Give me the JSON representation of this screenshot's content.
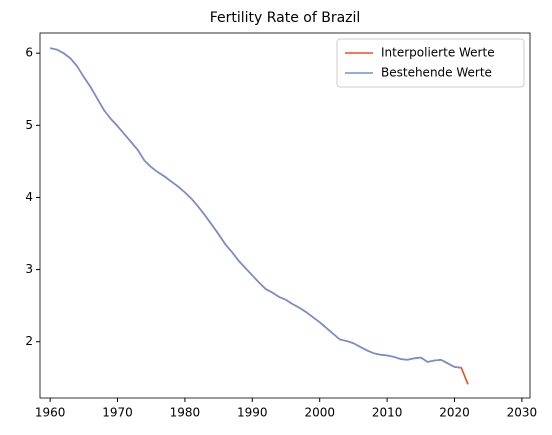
{
  "chart_data": {
    "type": "line",
    "title": "Fertility Rate of Brazil",
    "x": [
      1960,
      1961,
      1962,
      1963,
      1964,
      1965,
      1966,
      1967,
      1968,
      1969,
      1970,
      1971,
      1972,
      1973,
      1974,
      1975,
      1976,
      1977,
      1978,
      1979,
      1980,
      1981,
      1982,
      1983,
      1984,
      1985,
      1986,
      1987,
      1988,
      1989,
      1990,
      1991,
      1992,
      1993,
      1994,
      1995,
      1996,
      1997,
      1998,
      1999,
      2000,
      2001,
      2002,
      2003,
      2004,
      2005,
      2006,
      2007,
      2008,
      2009,
      2010,
      2011,
      2012,
      2013,
      2014,
      2015,
      2016,
      2017,
      2018,
      2019,
      2020,
      2021,
      2022
    ],
    "series": [
      {
        "name": "Interpolierte Werte",
        "color": "#e8501c",
        "values": [
          6.07,
          6.05,
          6.0,
          5.93,
          5.82,
          5.67,
          5.53,
          5.37,
          5.21,
          5.09,
          4.99,
          4.88,
          4.77,
          4.66,
          4.51,
          4.42,
          4.35,
          4.29,
          4.22,
          4.15,
          4.07,
          3.98,
          3.87,
          3.75,
          3.62,
          3.49,
          3.35,
          3.24,
          3.12,
          3.02,
          2.92,
          2.82,
          2.73,
          2.68,
          2.62,
          2.58,
          2.52,
          2.47,
          2.41,
          2.34,
          2.27,
          2.19,
          2.11,
          2.03,
          2.01,
          1.98,
          1.93,
          1.88,
          1.84,
          1.82,
          1.81,
          1.79,
          1.76,
          1.75,
          1.77,
          1.78,
          1.72,
          1.74,
          1.75,
          1.7,
          1.65,
          1.64,
          1.41
        ]
      },
      {
        "name": "Bestehende Werte",
        "color": "#6f8fd6",
        "values": [
          6.07,
          6.05,
          6.0,
          5.93,
          5.82,
          5.67,
          5.53,
          5.37,
          5.21,
          5.09,
          4.99,
          4.88,
          4.77,
          4.66,
          4.51,
          4.42,
          4.35,
          4.29,
          4.22,
          4.15,
          4.07,
          3.98,
          3.87,
          3.75,
          3.62,
          3.49,
          3.35,
          3.24,
          3.12,
          3.02,
          2.92,
          2.82,
          2.73,
          2.68,
          2.62,
          2.58,
          2.52,
          2.47,
          2.41,
          2.34,
          2.27,
          2.19,
          2.11,
          2.03,
          2.01,
          1.98,
          1.93,
          1.88,
          1.84,
          1.82,
          1.81,
          1.79,
          1.76,
          1.75,
          1.77,
          1.78,
          1.72,
          1.74,
          1.75,
          1.7,
          1.65,
          1.64,
          null
        ]
      }
    ],
    "xlim": [
      1958.5,
      2031.2
    ],
    "xticks": [
      1960,
      1970,
      1980,
      1990,
      2000,
      2010,
      2020,
      2030
    ],
    "ylim": [
      1.22,
      6.28
    ],
    "yticks": [
      2,
      3,
      4,
      5,
      6
    ],
    "legend": "upper right",
    "grid": false
  }
}
